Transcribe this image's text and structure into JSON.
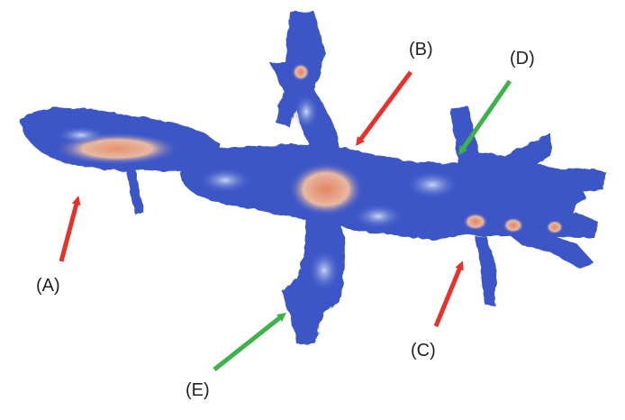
{
  "labels": {
    "A": "(A)",
    "B": "(B)",
    "C": "(C)",
    "D": "(D)",
    "E": "(E)"
  },
  "colors": {
    "structure_low": "#3a55c8",
    "structure_mid": "#93b4ea",
    "structure_high": "#e39a7c",
    "arrow_red": "#e5322b",
    "arrow_green": "#3db24a"
  }
}
